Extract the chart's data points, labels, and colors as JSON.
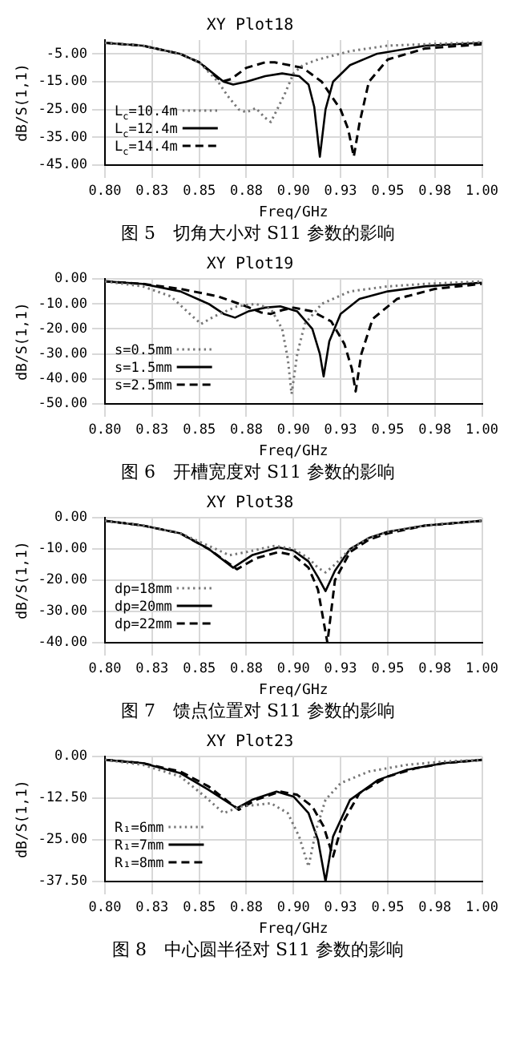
{
  "chart_data": [
    {
      "type": "line",
      "title": "XY Plot18",
      "xlabel": "Freq/GHz",
      "ylabel": "dB/S(1,1)",
      "annotations": [
        "图 5　切角大小对 S11 参数的影响"
      ],
      "xlim": [
        0.8,
        1.0
      ],
      "xticks": [
        {
          "value": 0.8,
          "label": "0.80"
        },
        {
          "value": 0.825,
          "label": "0.83"
        },
        {
          "value": 0.85,
          "label": "0.85"
        },
        {
          "value": 0.875,
          "label": "0.88"
        },
        {
          "value": 0.9,
          "label": "0.90"
        },
        {
          "value": 0.925,
          "label": "0.93"
        },
        {
          "value": 0.95,
          "label": "0.95"
        },
        {
          "value": 0.975,
          "label": "0.98"
        },
        {
          "value": 1.0,
          "label": "1.00"
        }
      ],
      "ylim": [
        -45,
        0
      ],
      "yticks": [
        {
          "value": -5,
          "label": "-5.00"
        },
        {
          "value": -15,
          "label": "-15.00"
        },
        {
          "value": -25,
          "label": "-25.00"
        },
        {
          "value": -35,
          "label": "-35.00"
        },
        {
          "value": -45,
          "label": "-45.00"
        }
      ],
      "grid": true,
      "legend": "bottom left",
      "marker": "none",
      "series": [
        {
          "name": "L$_{c}$=10.4m",
          "color": "#777777",
          "line_style": "dotted",
          "x": [
            0.8,
            0.82,
            0.84,
            0.85,
            0.86,
            0.865,
            0.871,
            0.875,
            0.88,
            0.885,
            0.888,
            0.895,
            0.9,
            0.905,
            0.913,
            0.93,
            0.95,
            0.97,
            1.0
          ],
          "values": [
            -1,
            -2,
            -5,
            -8,
            -15,
            -20,
            -25,
            -26,
            -24.5,
            -28,
            -29.5,
            -20,
            -12,
            -9,
            -7,
            -4,
            -2,
            -1.5,
            -0.8
          ]
        },
        {
          "name": "L$_{c}$=12.4m",
          "color": "#000000",
          "line_style": "solid",
          "x": [
            0.8,
            0.82,
            0.84,
            0.85,
            0.863,
            0.868,
            0.875,
            0.885,
            0.894,
            0.903,
            0.908,
            0.911,
            0.914,
            0.917,
            0.921,
            0.93,
            0.944,
            0.97,
            1.0
          ],
          "values": [
            -1,
            -2,
            -5,
            -8,
            -15,
            -16,
            -15,
            -13,
            -12,
            -13,
            -16,
            -24,
            -42,
            -25,
            -15,
            -9,
            -5,
            -2,
            -1
          ]
        },
        {
          "name": "L$_{c}$=14.4m",
          "color": "#000000",
          "line_style": "dashed",
          "x": [
            0.8,
            0.82,
            0.84,
            0.85,
            0.862,
            0.867,
            0.875,
            0.885,
            0.89,
            0.905,
            0.915,
            0.925,
            0.929,
            0.932,
            0.935,
            0.94,
            0.95,
            0.97,
            1.0
          ],
          "values": [
            -1,
            -2,
            -5,
            -8,
            -15,
            -14,
            -10,
            -8,
            -8,
            -10,
            -15,
            -25,
            -32,
            -42,
            -30,
            -15,
            -7,
            -3,
            -1.5
          ]
        }
      ]
    },
    {
      "type": "line",
      "title": "XY Plot19",
      "xlabel": "Freq/GHz",
      "ylabel": "dB/S(1,1)",
      "annotations": [
        "图 6　开槽宽度对 S11 参数的影响"
      ],
      "xlim": [
        0.8,
        1.0
      ],
      "xticks": [
        {
          "value": 0.8,
          "label": "0.80"
        },
        {
          "value": 0.825,
          "label": "0.83"
        },
        {
          "value": 0.85,
          "label": "0.85"
        },
        {
          "value": 0.875,
          "label": "0.88"
        },
        {
          "value": 0.9,
          "label": "0.90"
        },
        {
          "value": 0.925,
          "label": "0.93"
        },
        {
          "value": 0.95,
          "label": "0.95"
        },
        {
          "value": 0.975,
          "label": "0.98"
        },
        {
          "value": 1.0,
          "label": "1.00"
        }
      ],
      "ylim": [
        -50,
        0
      ],
      "yticks": [
        {
          "value": 0,
          "label": "0.00"
        },
        {
          "value": -10,
          "label": "-10.00"
        },
        {
          "value": -20,
          "label": "-20.00"
        },
        {
          "value": -30,
          "label": "-30.00"
        },
        {
          "value": -40,
          "label": "-40.00"
        },
        {
          "value": -50,
          "label": "-50.00"
        }
      ],
      "grid": true,
      "legend": "bottom left",
      "marker": "none",
      "series": [
        {
          "name": "s=0.5mm",
          "color": "#777777",
          "line_style": "dotted",
          "x": [
            0.8,
            0.82,
            0.835,
            0.845,
            0.851,
            0.858,
            0.87,
            0.88,
            0.888,
            0.894,
            0.897,
            0.899,
            0.902,
            0.906,
            0.915,
            0.93,
            0.95,
            0.97,
            1.0
          ],
          "values": [
            -1,
            -3,
            -7,
            -14,
            -18,
            -15,
            -11,
            -10,
            -12,
            -20,
            -32,
            -46,
            -30,
            -18,
            -10,
            -5,
            -3,
            -2,
            -1
          ]
        },
        {
          "name": "s=1.5mm",
          "color": "#000000",
          "line_style": "solid",
          "x": [
            0.8,
            0.82,
            0.84,
            0.855,
            0.863,
            0.869,
            0.876,
            0.885,
            0.893,
            0.902,
            0.91,
            0.914,
            0.916,
            0.919,
            0.925,
            0.935,
            0.95,
            0.97,
            1.0
          ],
          "values": [
            -1,
            -2,
            -5,
            -10,
            -14,
            -15.5,
            -13,
            -11.5,
            -11,
            -13,
            -20,
            -30,
            -39,
            -25,
            -14,
            -8,
            -5,
            -3,
            -1.5
          ]
        },
        {
          "name": "s=2.5mm",
          "color": "#000000",
          "line_style": "dashed",
          "x": [
            0.8,
            0.82,
            0.84,
            0.86,
            0.875,
            0.883,
            0.888,
            0.894,
            0.9,
            0.91,
            0.92,
            0.927,
            0.931,
            0.933,
            0.936,
            0.942,
            0.955,
            0.975,
            1.0
          ],
          "values": [
            -1,
            -2,
            -4,
            -7,
            -11,
            -13.5,
            -14,
            -12.5,
            -11.5,
            -13,
            -17,
            -26,
            -36,
            -45,
            -30,
            -16,
            -8,
            -4,
            -2
          ]
        }
      ]
    },
    {
      "type": "line",
      "title": "XY Plot38",
      "xlabel": "Freq/GHz",
      "ylabel": "dB/S(1,1)",
      "annotations": [
        "图 7　馈点位置对 S11 参数的影响"
      ],
      "xlim": [
        0.8,
        1.0
      ],
      "xticks": [
        {
          "value": 0.8,
          "label": "0.80"
        },
        {
          "value": 0.825,
          "label": "0.83"
        },
        {
          "value": 0.85,
          "label": "0.85"
        },
        {
          "value": 0.875,
          "label": "0.88"
        },
        {
          "value": 0.9,
          "label": "0.90"
        },
        {
          "value": 0.925,
          "label": "0.93"
        },
        {
          "value": 0.95,
          "label": "0.95"
        },
        {
          "value": 0.975,
          "label": "0.98"
        },
        {
          "value": 1.0,
          "label": "1.00"
        }
      ],
      "ylim": [
        -40,
        0
      ],
      "yticks": [
        {
          "value": 0,
          "label": "0.00"
        },
        {
          "value": -10,
          "label": "-10.00"
        },
        {
          "value": -20,
          "label": "-20.00"
        },
        {
          "value": -30,
          "label": "-30.00"
        },
        {
          "value": -40,
          "label": "-40.00"
        }
      ],
      "grid": true,
      "legend": "bottom left",
      "marker": "none",
      "series": [
        {
          "name": "dp=18mm",
          "color": "#777777",
          "line_style": "dotted",
          "x": [
            0.8,
            0.82,
            0.84,
            0.855,
            0.866,
            0.875,
            0.89,
            0.9,
            0.908,
            0.913,
            0.917,
            0.922,
            0.93,
            0.94,
            0.95,
            0.97,
            1.0
          ],
          "values": [
            -1,
            -2.5,
            -5,
            -9,
            -12,
            -11,
            -9,
            -10,
            -13,
            -16,
            -17.5,
            -15,
            -10,
            -6.5,
            -4.5,
            -2.5,
            -1
          ]
        },
        {
          "name": "dp=20mm",
          "color": "#000000",
          "line_style": "solid",
          "x": [
            0.8,
            0.82,
            0.84,
            0.855,
            0.868,
            0.878,
            0.892,
            0.9,
            0.908,
            0.913,
            0.917,
            0.922,
            0.93,
            0.94,
            0.95,
            0.97,
            1.0
          ],
          "values": [
            -1,
            -2.5,
            -5,
            -10,
            -16,
            -12,
            -9.5,
            -10.5,
            -14,
            -19,
            -23.5,
            -17,
            -10,
            -6.5,
            -4.5,
            -2.5,
            -1
          ]
        },
        {
          "name": "dp=22mm",
          "color": "#000000",
          "line_style": "dashed",
          "x": [
            0.8,
            0.82,
            0.84,
            0.855,
            0.87,
            0.88,
            0.892,
            0.9,
            0.908,
            0.913,
            0.918,
            0.922,
            0.93,
            0.94,
            0.95,
            0.97,
            1.0
          ],
          "values": [
            -1,
            -2.5,
            -5,
            -10,
            -16.5,
            -13,
            -11,
            -12,
            -16,
            -23,
            -40,
            -20,
            -11,
            -7,
            -5,
            -2.5,
            -1
          ]
        }
      ]
    },
    {
      "type": "line",
      "title": "XY Plot23",
      "xlabel": "Freq/GHz",
      "ylabel": "dB/S(1,1)",
      "annotations": [
        "图 8　中心圆半径对 S11 参数的影响"
      ],
      "xlim": [
        0.8,
        1.0
      ],
      "xticks": [
        {
          "value": 0.8,
          "label": "0.80"
        },
        {
          "value": 0.825,
          "label": "0.83"
        },
        {
          "value": 0.85,
          "label": "0.85"
        },
        {
          "value": 0.875,
          "label": "0.88"
        },
        {
          "value": 0.9,
          "label": "0.90"
        },
        {
          "value": 0.925,
          "label": "0.93"
        },
        {
          "value": 0.95,
          "label": "0.95"
        },
        {
          "value": 0.975,
          "label": "0.98"
        },
        {
          "value": 1.0,
          "label": "1.00"
        }
      ],
      "ylim": [
        -37.5,
        0
      ],
      "yticks": [
        {
          "value": 0,
          "label": "0.00"
        },
        {
          "value": -12.5,
          "label": "-12.50"
        },
        {
          "value": -25,
          "label": "-25.00"
        },
        {
          "value": -37.5,
          "label": "-37.50"
        }
      ],
      "grid": true,
      "legend": "bottom left",
      "marker": "none",
      "series": [
        {
          "name": "R₁=6mm",
          "color": "#777777",
          "line_style": "dotted",
          "x": [
            0.8,
            0.82,
            0.84,
            0.853,
            0.863,
            0.872,
            0.888,
            0.897,
            0.903,
            0.908,
            0.912,
            0.917,
            0.925,
            0.94,
            0.96,
            0.98,
            1.0
          ],
          "values": [
            -1,
            -2.5,
            -6,
            -12,
            -17,
            -15,
            -14,
            -17,
            -24,
            -33,
            -22,
            -13,
            -8,
            -4.5,
            -2.5,
            -1.5,
            -1
          ]
        },
        {
          "name": "R₁=7mm",
          "color": "#000000",
          "line_style": "solid",
          "x": [
            0.8,
            0.82,
            0.84,
            0.855,
            0.87,
            0.878,
            0.891,
            0.9,
            0.908,
            0.913,
            0.917,
            0.921,
            0.93,
            0.945,
            0.96,
            0.98,
            1.0
          ],
          "values": [
            -1,
            -2,
            -5,
            -10,
            -15.5,
            -13,
            -10.5,
            -12,
            -17,
            -25,
            -37.5,
            -24,
            -13,
            -7,
            -4,
            -2,
            -1
          ]
        },
        {
          "name": "R₁=8mm",
          "color": "#000000",
          "line_style": "dashed",
          "x": [
            0.8,
            0.82,
            0.84,
            0.855,
            0.871,
            0.88,
            0.893,
            0.902,
            0.91,
            0.916,
            0.921,
            0.926,
            0.935,
            0.95,
            0.965,
            0.98,
            1.0
          ],
          "values": [
            -1,
            -2,
            -4.5,
            -9,
            -16,
            -13,
            -10.5,
            -11.5,
            -15,
            -21,
            -30,
            -20,
            -11,
            -6,
            -3.5,
            -2,
            -1
          ]
        }
      ]
    }
  ]
}
